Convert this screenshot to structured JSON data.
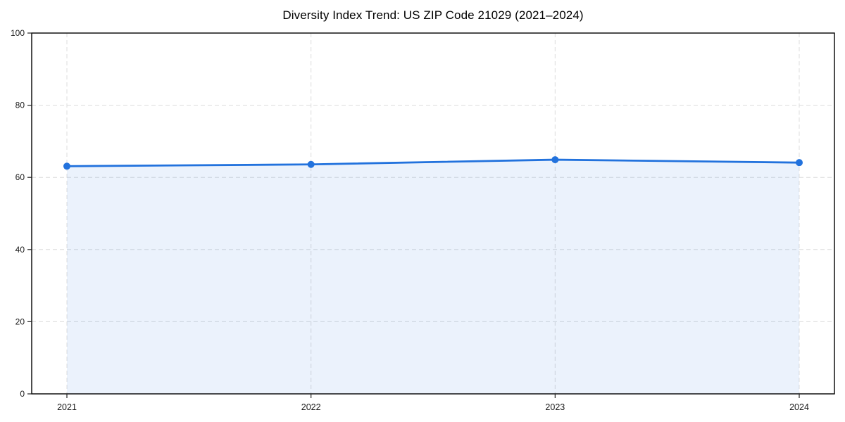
{
  "chart_data": {
    "type": "area",
    "title": "Diversity Index Trend: US ZIP Code 21029 (2021–2024)",
    "categories": [
      "2021",
      "2022",
      "2023",
      "2024"
    ],
    "series": [
      {
        "name": "Diversity Index",
        "values": [
          63.1,
          63.6,
          64.9,
          64.1
        ]
      }
    ],
    "xlabel": "",
    "ylabel": "",
    "ylim": [
      0,
      100
    ],
    "yticks": [
      0,
      20,
      40,
      60,
      80,
      100
    ],
    "grid": "dashed-both-axes",
    "legend": "none",
    "marker": "circle",
    "colors": {
      "line": "#2272dd",
      "area_tint": "#e8f0fb",
      "grid": "#dcdcdc",
      "axis": "#000000",
      "text": "#1a1a1a"
    }
  }
}
